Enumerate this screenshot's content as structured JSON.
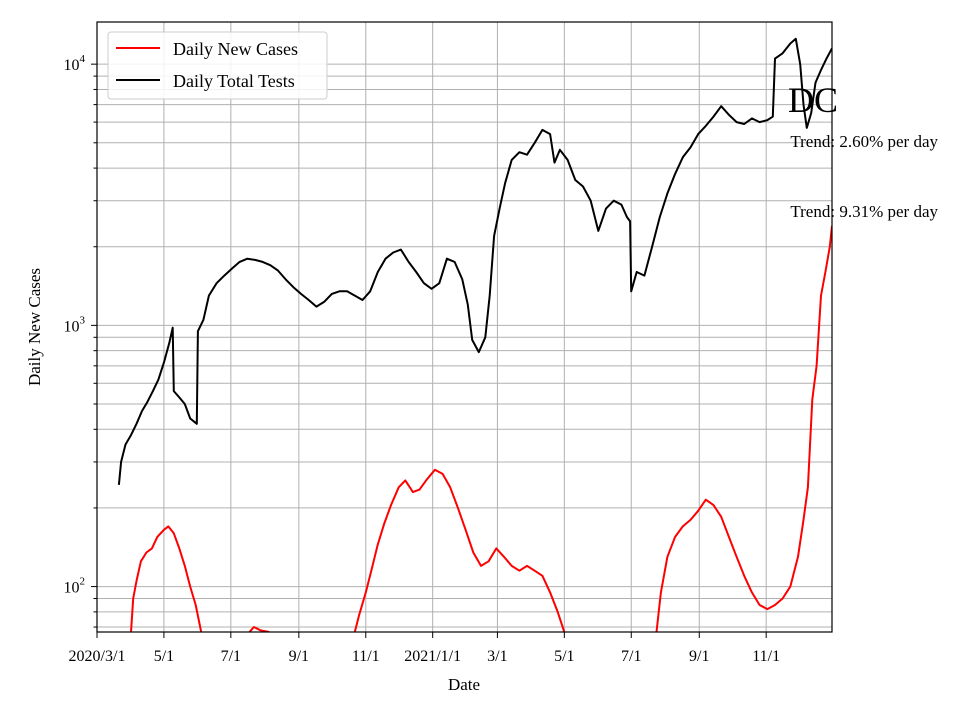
{
  "chart_data": {
    "type": "line",
    "title": "",
    "xlabel": "Date",
    "ylabel": "Daily New Cases",
    "yscale": "log",
    "ylim": [
      67,
      14500
    ],
    "xlim": [
      "2020-03-01",
      "2021-12-31"
    ],
    "x_ticks": [
      {
        "date": "2020-03-01",
        "label": "2020/3/1"
      },
      {
        "date": "2020-05-01",
        "label": "5/1"
      },
      {
        "date": "2020-07-01",
        "label": "7/1"
      },
      {
        "date": "2020-09-01",
        "label": "9/1"
      },
      {
        "date": "2020-11-01",
        "label": "11/1"
      },
      {
        "date": "2021-01-01",
        "label": "2021/1/1"
      },
      {
        "date": "2021-03-01",
        "label": "3/1"
      },
      {
        "date": "2021-05-01",
        "label": "5/1"
      },
      {
        "date": "2021-07-01",
        "label": "7/1"
      },
      {
        "date": "2021-09-01",
        "label": "9/1"
      },
      {
        "date": "2021-11-01",
        "label": "11/1"
      }
    ],
    "y_ticks": [
      {
        "value": 100,
        "base": "10",
        "exp": "2"
      },
      {
        "value": 1000,
        "base": "10",
        "exp": "3"
      },
      {
        "value": 10000,
        "base": "10",
        "exp": "4"
      }
    ],
    "grid": true,
    "legend_position": "upper-left",
    "series": [
      {
        "name": "Daily New Cases",
        "color": "#ff0000",
        "points": [
          [
            "2020-04-01",
            67
          ],
          [
            "2020-04-03",
            90
          ],
          [
            "2020-04-06",
            105
          ],
          [
            "2020-04-10",
            125
          ],
          [
            "2020-04-15",
            135
          ],
          [
            "2020-04-20",
            140
          ],
          [
            "2020-04-25",
            155
          ],
          [
            "2020-05-01",
            165
          ],
          [
            "2020-05-05",
            170
          ],
          [
            "2020-05-10",
            160
          ],
          [
            "2020-05-15",
            140
          ],
          [
            "2020-05-20",
            120
          ],
          [
            "2020-05-25",
            100
          ],
          [
            "2020-05-30",
            85
          ],
          [
            "2020-06-04",
            67
          ],
          null,
          [
            "2020-07-18",
            67
          ],
          [
            "2020-07-22",
            70
          ],
          [
            "2020-07-28",
            68
          ],
          [
            "2020-08-05",
            67
          ],
          null,
          [
            "2020-10-22",
            67
          ],
          [
            "2020-10-26",
            78
          ],
          [
            "2020-11-01",
            95
          ],
          [
            "2020-11-06",
            115
          ],
          [
            "2020-11-12",
            145
          ],
          [
            "2020-11-18",
            175
          ],
          [
            "2020-11-24",
            205
          ],
          [
            "2020-12-01",
            240
          ],
          [
            "2020-12-07",
            255
          ],
          [
            "2020-12-14",
            230
          ],
          [
            "2020-12-20",
            235
          ],
          [
            "2020-12-26",
            255
          ],
          [
            "2021-01-03",
            280
          ],
          [
            "2021-01-10",
            270
          ],
          [
            "2021-01-17",
            240
          ],
          [
            "2021-01-24",
            200
          ],
          [
            "2021-01-31",
            165
          ],
          [
            "2021-02-07",
            135
          ],
          [
            "2021-02-14",
            120
          ],
          [
            "2021-02-21",
            125
          ],
          [
            "2021-02-28",
            140
          ],
          [
            "2021-03-07",
            130
          ],
          [
            "2021-03-14",
            120
          ],
          [
            "2021-03-21",
            115
          ],
          [
            "2021-03-28",
            120
          ],
          [
            "2021-04-04",
            115
          ],
          [
            "2021-04-11",
            110
          ],
          [
            "2021-04-18",
            95
          ],
          [
            "2021-04-25",
            80
          ],
          [
            "2021-05-01",
            67
          ],
          null,
          [
            "2021-07-24",
            67
          ],
          [
            "2021-07-28",
            95
          ],
          [
            "2021-08-03",
            130
          ],
          [
            "2021-08-10",
            155
          ],
          [
            "2021-08-17",
            170
          ],
          [
            "2021-08-24",
            180
          ],
          [
            "2021-08-31",
            195
          ],
          [
            "2021-09-07",
            215
          ],
          [
            "2021-09-14",
            205
          ],
          [
            "2021-09-21",
            185
          ],
          [
            "2021-09-28",
            155
          ],
          [
            "2021-10-05",
            130
          ],
          [
            "2021-10-12",
            110
          ],
          [
            "2021-10-19",
            95
          ],
          [
            "2021-10-26",
            85
          ],
          [
            "2021-11-02",
            82
          ],
          [
            "2021-11-09",
            85
          ],
          [
            "2021-11-16",
            90
          ],
          [
            "2021-11-23",
            100
          ],
          [
            "2021-11-30",
            130
          ],
          [
            "2021-12-05",
            180
          ],
          [
            "2021-12-09",
            240
          ],
          [
            "2021-12-13",
            520
          ],
          [
            "2021-12-17",
            700
          ],
          [
            "2021-12-21",
            1300
          ],
          [
            "2021-12-25",
            1600
          ],
          [
            "2021-12-29",
            2000
          ],
          [
            "2021-12-31",
            2400
          ]
        ]
      },
      {
        "name": "Daily Total Tests",
        "color": "#000000",
        "points": [
          [
            "2020-03-21",
            245
          ],
          [
            "2020-03-23",
            300
          ],
          [
            "2020-03-27",
            350
          ],
          [
            "2020-04-01",
            380
          ],
          [
            "2020-04-06",
            420
          ],
          [
            "2020-04-11",
            470
          ],
          [
            "2020-04-16",
            510
          ],
          [
            "2020-04-21",
            560
          ],
          [
            "2020-04-26",
            620
          ],
          [
            "2020-05-01",
            720
          ],
          [
            "2020-05-06",
            860
          ],
          [
            "2020-05-09",
            980
          ],
          [
            "2020-05-10",
            560
          ],
          [
            "2020-05-15",
            530
          ],
          [
            "2020-05-20",
            500
          ],
          [
            "2020-05-25",
            440
          ],
          [
            "2020-05-31",
            420
          ],
          [
            "2020-06-01",
            950
          ],
          [
            "2020-06-06",
            1050
          ],
          [
            "2020-06-11",
            1300
          ],
          [
            "2020-06-18",
            1450
          ],
          [
            "2020-06-25",
            1550
          ],
          [
            "2020-07-02",
            1650
          ],
          [
            "2020-07-09",
            1750
          ],
          [
            "2020-07-16",
            1800
          ],
          [
            "2020-07-23",
            1780
          ],
          [
            "2020-07-30",
            1750
          ],
          [
            "2020-08-06",
            1700
          ],
          [
            "2020-08-13",
            1620
          ],
          [
            "2020-08-20",
            1500
          ],
          [
            "2020-08-27",
            1400
          ],
          [
            "2020-09-03",
            1320
          ],
          [
            "2020-09-10",
            1250
          ],
          [
            "2020-09-17",
            1180
          ],
          [
            "2020-09-24",
            1230
          ],
          [
            "2020-10-01",
            1320
          ],
          [
            "2020-10-08",
            1350
          ],
          [
            "2020-10-15",
            1350
          ],
          [
            "2020-10-22",
            1300
          ],
          [
            "2020-10-29",
            1250
          ],
          [
            "2020-11-05",
            1350
          ],
          [
            "2020-11-12",
            1600
          ],
          [
            "2020-11-19",
            1800
          ],
          [
            "2020-11-26",
            1900
          ],
          [
            "2020-12-03",
            1950
          ],
          [
            "2020-12-10",
            1750
          ],
          [
            "2020-12-17",
            1600
          ],
          [
            "2020-12-24",
            1450
          ],
          [
            "2020-12-31",
            1380
          ],
          [
            "2021-01-07",
            1450
          ],
          [
            "2021-01-14",
            1800
          ],
          [
            "2021-01-21",
            1750
          ],
          [
            "2021-01-28",
            1500
          ],
          [
            "2021-02-02",
            1200
          ],
          [
            "2021-02-06",
            880
          ],
          [
            "2021-02-12",
            790
          ],
          [
            "2021-02-18",
            900
          ],
          [
            "2021-02-22",
            1300
          ],
          [
            "2021-02-26",
            2200
          ],
          [
            "2021-03-03",
            2800
          ],
          [
            "2021-03-08",
            3500
          ],
          [
            "2021-03-14",
            4300
          ],
          [
            "2021-03-21",
            4600
          ],
          [
            "2021-03-28",
            4500
          ],
          [
            "2021-04-04",
            5000
          ],
          [
            "2021-04-11",
            5600
          ],
          [
            "2021-04-18",
            5400
          ],
          [
            "2021-04-22",
            4200
          ],
          [
            "2021-04-27",
            4700
          ],
          [
            "2021-05-04",
            4300
          ],
          [
            "2021-05-11",
            3600
          ],
          [
            "2021-05-18",
            3400
          ],
          [
            "2021-05-25",
            3000
          ],
          [
            "2021-06-01",
            2300
          ],
          [
            "2021-06-08",
            2800
          ],
          [
            "2021-06-15",
            3000
          ],
          [
            "2021-06-22",
            2900
          ],
          [
            "2021-06-27",
            2600
          ],
          [
            "2021-06-30",
            2500
          ],
          [
            "2021-07-01",
            1350
          ],
          [
            "2021-07-06",
            1600
          ],
          [
            "2021-07-13",
            1550
          ],
          [
            "2021-07-20",
            2000
          ],
          [
            "2021-07-27",
            2600
          ],
          [
            "2021-08-03",
            3200
          ],
          [
            "2021-08-10",
            3800
          ],
          [
            "2021-08-17",
            4400
          ],
          [
            "2021-08-24",
            4800
          ],
          [
            "2021-08-31",
            5400
          ],
          [
            "2021-09-07",
            5800
          ],
          [
            "2021-09-14",
            6300
          ],
          [
            "2021-09-21",
            6900
          ],
          [
            "2021-09-28",
            6400
          ],
          [
            "2021-10-05",
            6000
          ],
          [
            "2021-10-12",
            5900
          ],
          [
            "2021-10-19",
            6200
          ],
          [
            "2021-10-26",
            6000
          ],
          [
            "2021-11-02",
            6100
          ],
          [
            "2021-11-07",
            6300
          ],
          [
            "2021-11-09",
            10500
          ],
          [
            "2021-11-16",
            11000
          ],
          [
            "2021-11-23",
            12000
          ],
          [
            "2021-11-28",
            12500
          ],
          [
            "2021-12-02",
            10000
          ],
          [
            "2021-12-05",
            7000
          ],
          [
            "2021-12-08",
            5700
          ],
          [
            "2021-12-12",
            6500
          ],
          [
            "2021-12-16",
            8500
          ],
          [
            "2021-12-21",
            9500
          ],
          [
            "2021-12-26",
            10500
          ],
          [
            "2021-12-31",
            11500
          ]
        ]
      }
    ],
    "annotations": [
      {
        "text": "DC",
        "size": "large",
        "anchor": "right-top"
      },
      {
        "text": "Trend: 2.60% per day",
        "anchor": "right-upper"
      },
      {
        "text": "Trend: 9.31% per day",
        "anchor": "right-mid"
      }
    ]
  }
}
